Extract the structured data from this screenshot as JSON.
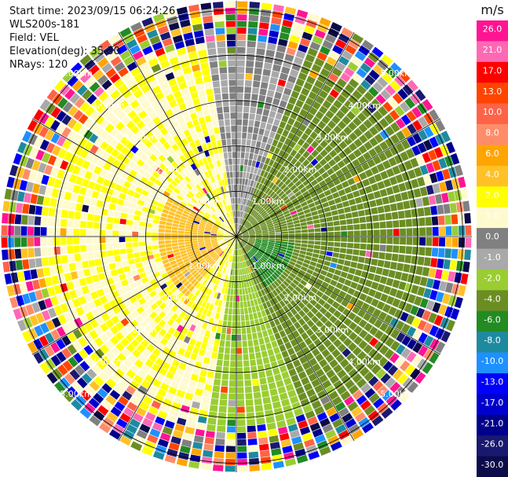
{
  "header": {
    "start_time": "Start time: 2023/09/15 06:24:26",
    "station": "WLS200s-181",
    "field": "Field: VEL",
    "elevation": "Elevation(deg): 35.30",
    "nrays": "NRays: 120"
  },
  "chart_data": {
    "type": "heatmap",
    "projection": "polar-ppi",
    "field": "VEL",
    "units": "m/s",
    "n_rays": 120,
    "n_gates": 36,
    "range_rings_km": [
      1.0,
      2.0,
      3.0,
      4.0,
      5.0
    ],
    "range_ring_labels": [
      "1.00km",
      "2.00km",
      "3.00km",
      "4.00km",
      "5.00km"
    ],
    "max_range_km": 5.2,
    "noise_start_km": 4.2,
    "spokes_deg": [
      0,
      30,
      60,
      90,
      120,
      150,
      180,
      210,
      240,
      270,
      300,
      330
    ],
    "velocity_bands": [
      {
        "sector_deg": [
          190,
          350
        ],
        "max_range_km": 4.2,
        "level": 2.0
      },
      {
        "sector_deg": [
          350,
          20
        ],
        "max_range_km": 4.2,
        "level": 0.0
      },
      {
        "sector_deg": [
          20,
          160
        ],
        "max_range_km": 4.2,
        "level": -3.0
      },
      {
        "sector_deg": [
          160,
          190
        ],
        "max_range_km": 4.2,
        "level": -1.5
      }
    ],
    "colorbar": {
      "unit": "m/s",
      "ticks": [
        "26.0",
        "21.0",
        "17.0",
        "13.0",
        "10.0",
        "8.0",
        "6.0",
        "4.0",
        "2.0",
        "1.0",
        "0.0",
        "-1.0",
        "-2.0",
        "-4.0",
        "-6.0",
        "-8.0",
        "-10.0",
        "-13.0",
        "-17.0",
        "-21.0",
        "-26.0",
        "-30.0"
      ],
      "colors": [
        "#ff1493",
        "#ff69b4",
        "#ff0000",
        "#ff4500",
        "#ff6347",
        "#ff8c69",
        "#ffa500",
        "#ffc125",
        "#ffff00",
        "#fffacd",
        "#808080",
        "#a9a9a9",
        "#9acd32",
        "#6b8e23",
        "#228b22",
        "#1e8aa0",
        "#1e90ff",
        "#0000ff",
        "#0000cd",
        "#00008b",
        "#191970",
        "#0b0b4a"
      ]
    }
  }
}
